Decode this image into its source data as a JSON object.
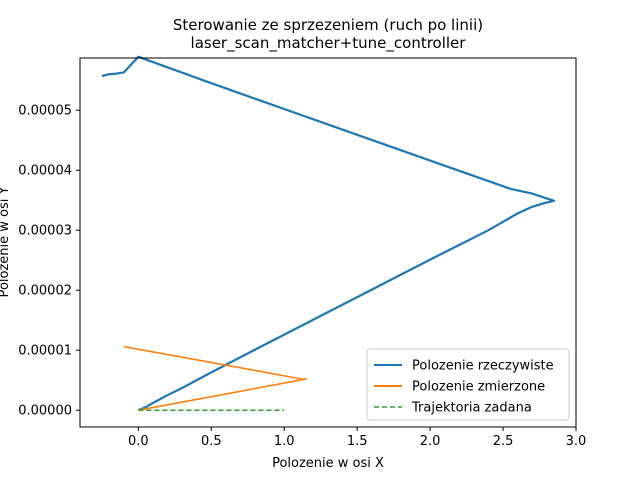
{
  "chart_data": {
    "type": "line",
    "title": "Sterowanie ze sprzezeniem (ruch po linii)",
    "subtitle": "laser_scan_matcher+tune_controller",
    "xlabel": "Polozenie w osi X",
    "ylabel": "Polozenie w osi Y",
    "xlim": [
      -0.4,
      3.0
    ],
    "ylim": [
      -2.8e-06,
      5.87e-05
    ],
    "x_ticks": [
      0.0,
      0.5,
      1.0,
      1.5,
      2.0,
      2.5,
      3.0
    ],
    "x_tick_labels": [
      "0.0",
      "0.5",
      "1.0",
      "1.5",
      "2.0",
      "2.5",
      "3.0"
    ],
    "y_ticks": [
      0.0,
      1e-05,
      2e-05,
      3e-05,
      4e-05,
      5e-05
    ],
    "y_tick_labels": [
      "0.00000",
      "0.00001",
      "0.00002",
      "0.00003",
      "0.00004",
      "0.00005"
    ],
    "grid": false,
    "legend_position": "lower-right",
    "series": [
      {
        "name": "Polozenie rzeczywiste",
        "color": "#1f77b4",
        "style": "solid",
        "x": [
          0.0,
          0.05,
          0.1,
          0.2,
          0.3,
          0.5,
          0.8,
          1.2,
          1.6,
          2.0,
          2.4,
          2.6,
          2.7,
          2.78,
          2.85,
          2.8,
          2.7,
          2.55,
          2.0,
          1.5,
          1.0,
          0.5,
          0.0,
          -0.1,
          -0.15,
          -0.2,
          -0.25
        ],
        "y": [
          0.0,
          5e-07,
          1.2e-06,
          2.5e-06,
          3.7e-06,
          6.3e-06,
          1.01e-05,
          1.51e-05,
          2.01e-05,
          2.51e-05,
          3e-05,
          3.28e-05,
          3.39e-05,
          3.45e-05,
          3.49e-05,
          3.53e-05,
          3.61e-05,
          3.69e-05,
          4.16e-05,
          4.59e-05,
          5.02e-05,
          5.45e-05,
          5.89e-05,
          5.63e-05,
          5.61e-05,
          5.6e-05,
          5.57e-05
        ]
      },
      {
        "name": "Polozenie zmierzone",
        "color": "#ff7f0e",
        "style": "solid",
        "x": [
          0.0,
          1.15,
          1.12,
          -0.1
        ],
        "y": [
          0.0,
          5.2e-06,
          5.2e-06,
          1.06e-05
        ]
      },
      {
        "name": "Trajektoria zadana",
        "color": "#2ca02c",
        "style": "dashed",
        "x": [
          0.0,
          1.0
        ],
        "y": [
          0.0,
          0.0
        ]
      }
    ]
  }
}
